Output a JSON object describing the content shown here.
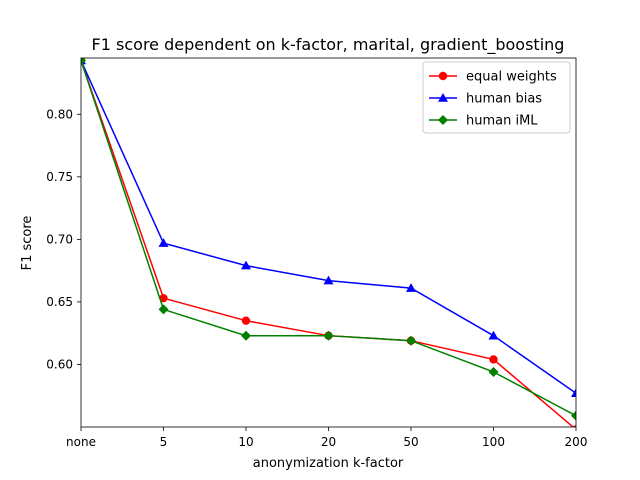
{
  "chart_data": {
    "type": "line",
    "title": "F1 score dependent on k-factor, marital, gradient_boosting",
    "xlabel": "anonymization k-factor",
    "ylabel": "F1 score",
    "categories": [
      "none",
      "5",
      "10",
      "20",
      "50",
      "100",
      "200"
    ],
    "ylim": [
      0.55,
      0.845
    ],
    "yticks": [
      "0.60",
      "0.65",
      "0.70",
      "0.75",
      "0.80"
    ],
    "grid": false,
    "legend_position": "top-right",
    "series": [
      {
        "name": "equal weights",
        "color": "#ff0000",
        "marker": "circle",
        "values": [
          0.843,
          0.653,
          0.635,
          0.623,
          0.619,
          0.604,
          0.548
        ]
      },
      {
        "name": "human bias",
        "color": "#0000ff",
        "marker": "triangle",
        "values": [
          0.843,
          0.697,
          0.679,
          0.667,
          0.661,
          0.623,
          0.577
        ]
      },
      {
        "name": "human iML",
        "color": "#008000",
        "marker": "diamond",
        "values": [
          0.843,
          0.644,
          0.623,
          0.623,
          0.619,
          0.594,
          0.559
        ]
      }
    ]
  }
}
